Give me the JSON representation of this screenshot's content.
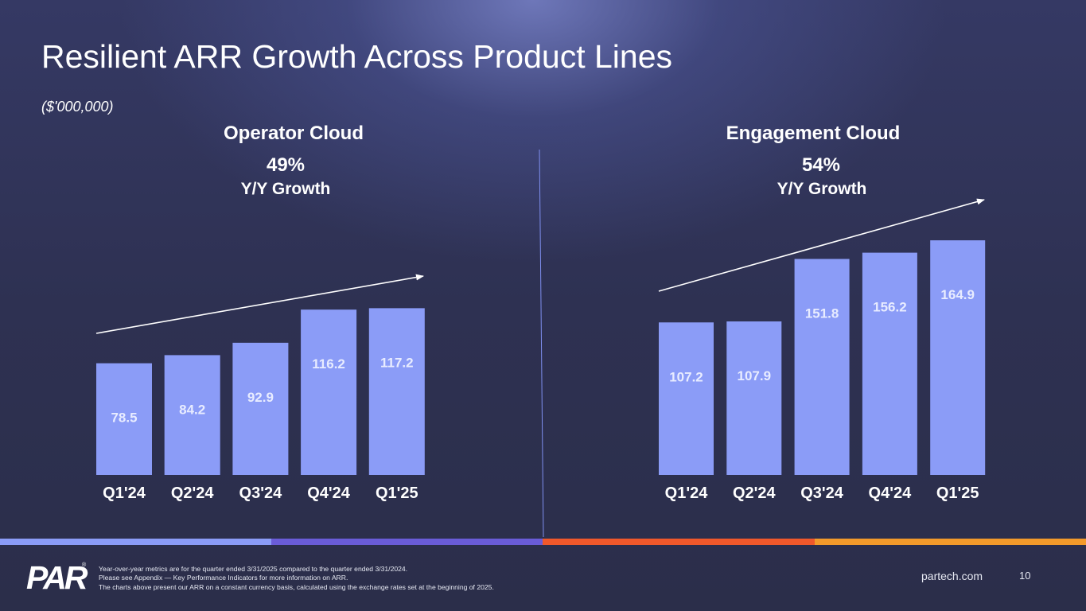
{
  "slide": {
    "title": "Resilient ARR Growth Across Product Lines",
    "units": "($'000,000)",
    "page_number": "10",
    "website": "partech.com",
    "logo_text": "PAR",
    "logo_mark": "®",
    "footnotes": [
      "Year-over-year metrics are for the quarter ended 3/31/2025 compared to the quarter ended 3/31/2024.",
      "Please see Appendix — Key Performance Indicators for more information on ARR.",
      "The charts above present our ARR on a constant currency basis, calculated using the exchange rates set at the beginning of 2025."
    ]
  },
  "colors": {
    "bar": "#8b9cf7",
    "bar_label": "#e8ecff",
    "divider": "#7f8fef",
    "stripe": [
      "#8b9cf7",
      "#6a5cd8",
      "#f0582b",
      "#f39a2b"
    ]
  },
  "chart_data": [
    {
      "type": "bar",
      "title": "Operator Cloud",
      "growth_pct": "49%",
      "growth_label": "Y/Y Growth",
      "categories": [
        "Q1'24",
        "Q2'24",
        "Q3'24",
        "Q4'24",
        "Q1'25"
      ],
      "values": [
        78.5,
        84.2,
        92.9,
        116.2,
        117.2
      ],
      "value_labels": [
        "78.5",
        "84.2",
        "92.9",
        "116.2",
        "117.2"
      ],
      "ylim": [
        0,
        194
      ],
      "trend_arrow": true
    },
    {
      "type": "bar",
      "title": "Engagement Cloud",
      "growth_pct": "54%",
      "growth_label": "Y/Y Growth",
      "categories": [
        "Q1'24",
        "Q2'24",
        "Q3'24",
        "Q4'24",
        "Q1'25"
      ],
      "values": [
        107.2,
        107.9,
        151.8,
        156.2,
        164.9
      ],
      "value_labels": [
        "107.2",
        "107.9",
        "151.8",
        "156.2",
        "164.9"
      ],
      "ylim": [
        0,
        194
      ],
      "trend_arrow": true
    }
  ]
}
